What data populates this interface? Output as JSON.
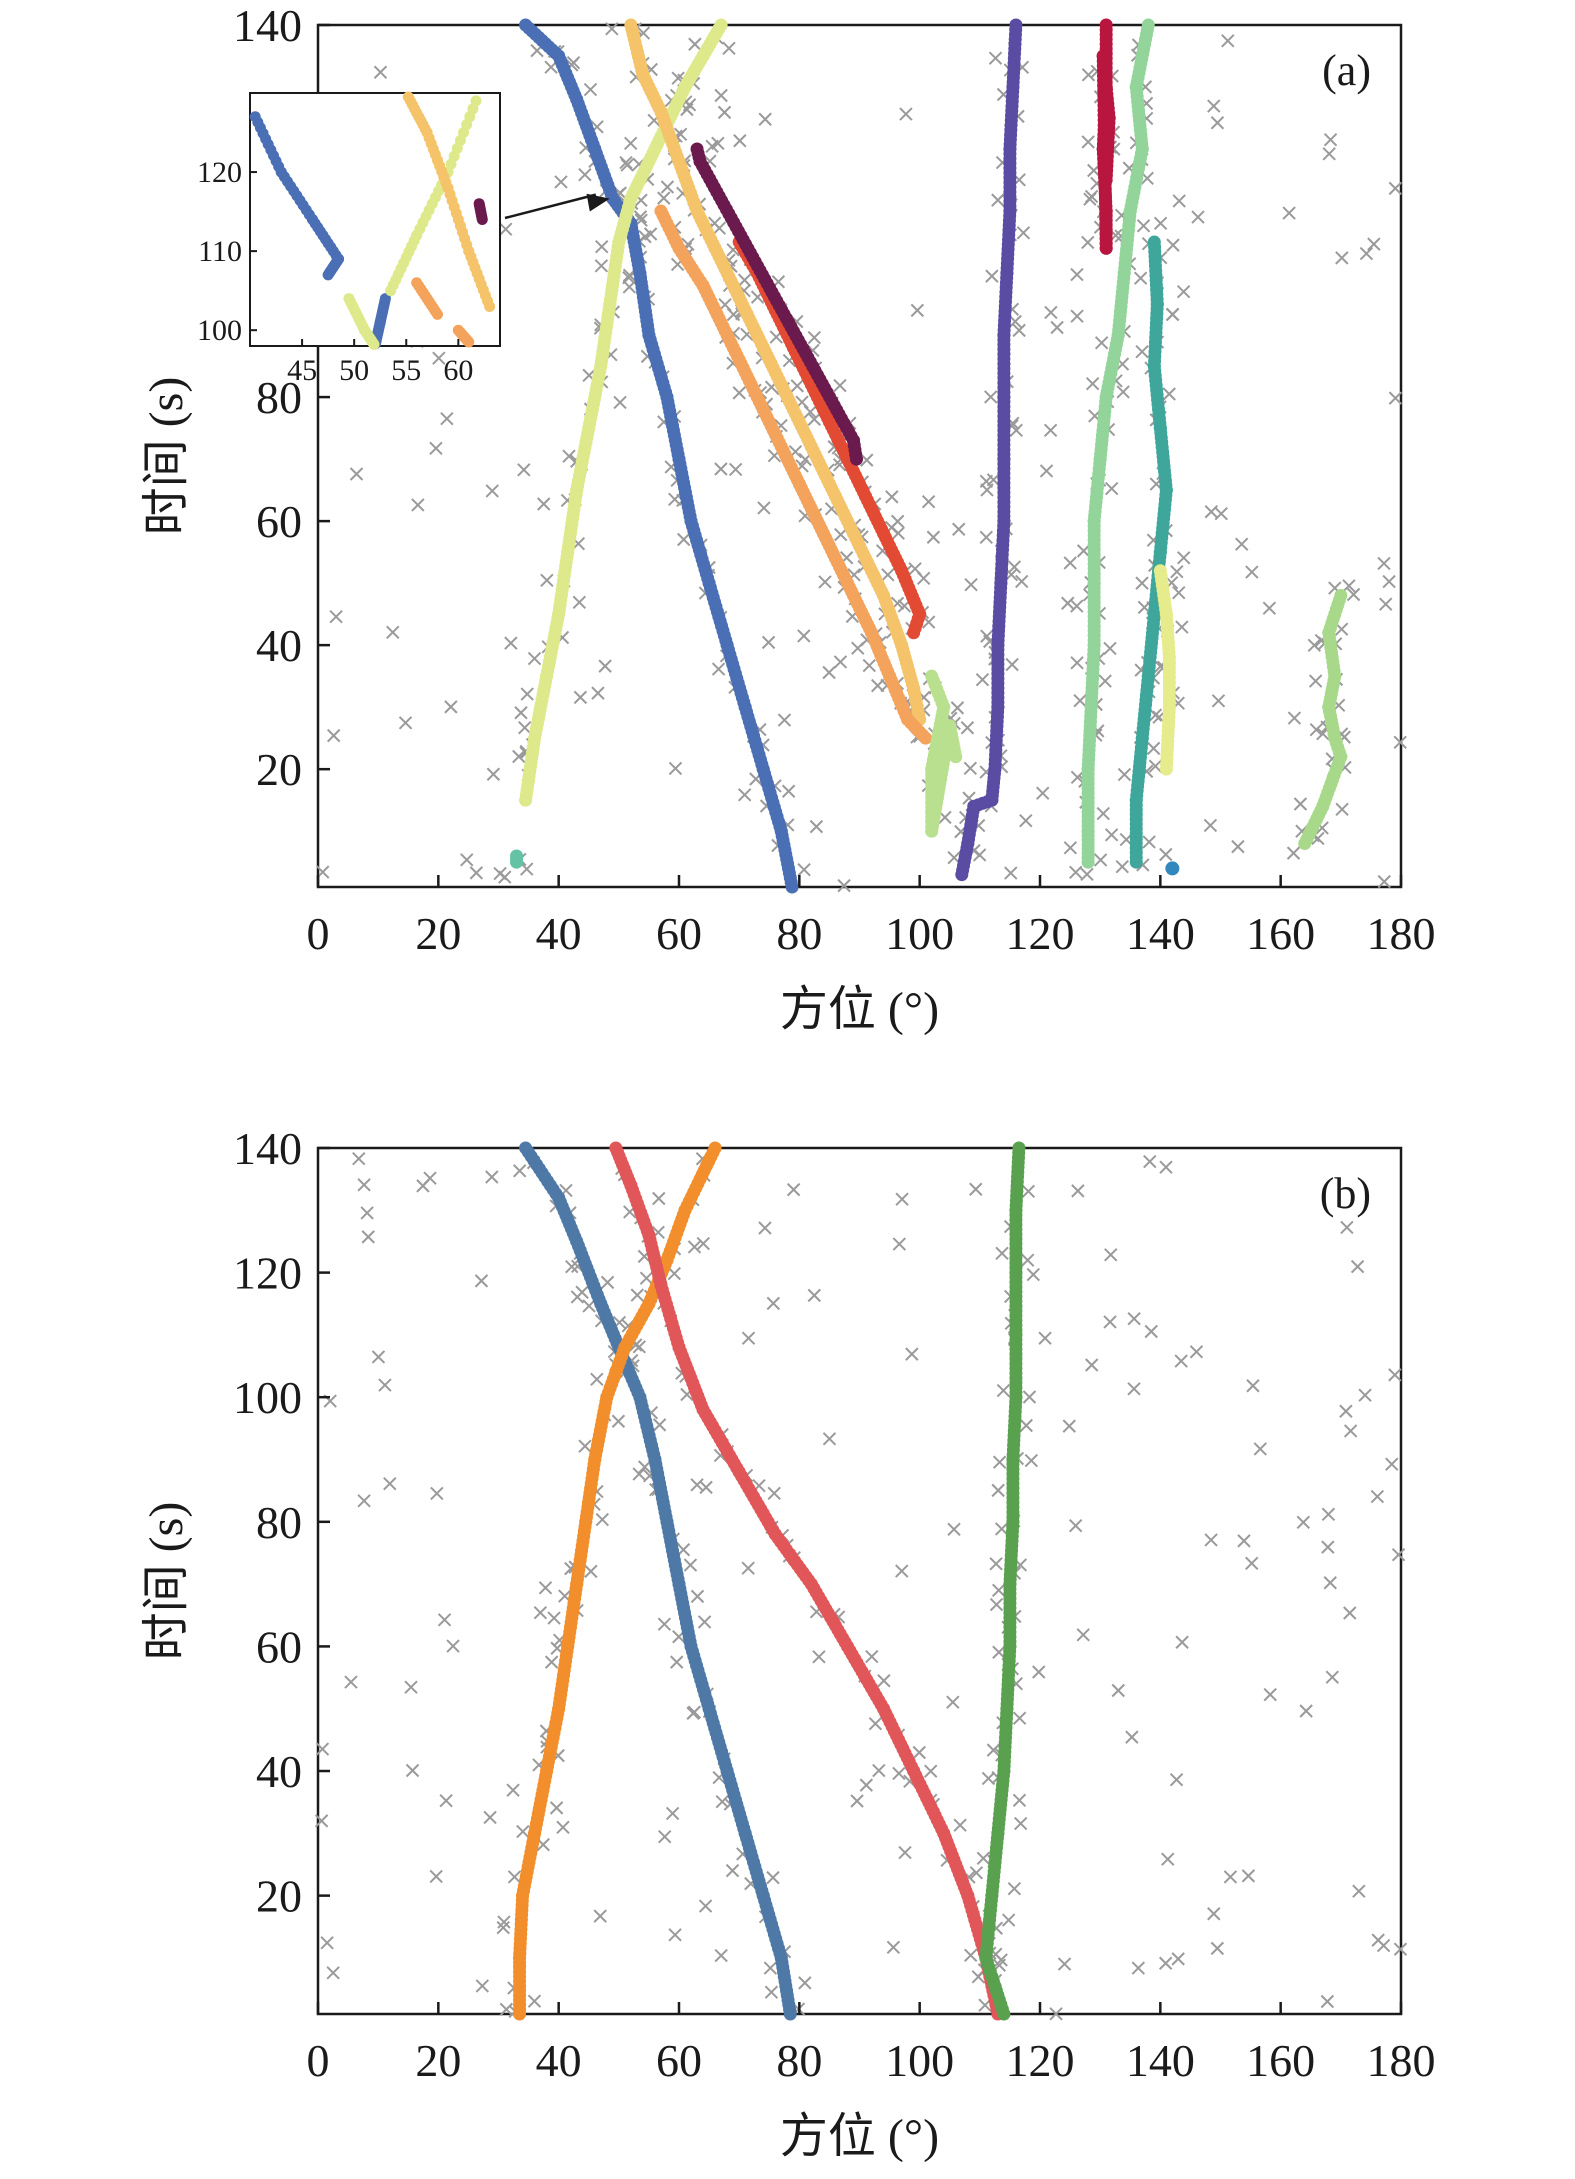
{
  "chart_data": [
    {
      "type": "scatter",
      "panel_label": "(a)",
      "xlabel": "方位 (°)",
      "ylabel": "时间 (s)",
      "xlim": [
        0,
        180
      ],
      "ylim": [
        1,
        140
      ],
      "xticks": [
        0,
        20,
        40,
        60,
        80,
        100,
        120,
        140,
        160,
        180
      ],
      "yticks": [
        20,
        40,
        60,
        80,
        140
      ],
      "grid": false,
      "series": [
        {
          "color": "#4a6fb5",
          "points": [
            [
              78.8,
              1
            ],
            [
              77,
              10
            ],
            [
              74,
              20
            ],
            [
              71,
              30
            ],
            [
              68,
              40
            ],
            [
              65,
              50
            ],
            [
              62,
              60
            ],
            [
              60,
              70
            ],
            [
              58,
              80
            ],
            [
              55,
              90
            ],
            [
              53.5,
              100
            ],
            [
              52,
              108
            ],
            [
              49,
              112
            ],
            [
              46,
              120
            ],
            [
              43,
              128
            ],
            [
              40,
              135
            ],
            [
              34.5,
              140
            ]
          ]
        },
        {
          "color": "#dde98a",
          "points": [
            [
              34.5,
              15
            ],
            [
              36,
              25
            ],
            [
              38,
              35
            ],
            [
              40,
              45
            ],
            [
              41.5,
              55
            ],
            [
              43,
              65
            ],
            [
              45,
              75
            ],
            [
              47,
              85
            ],
            [
              48.5,
              95
            ],
            [
              50,
              105
            ],
            [
              52,
              112
            ],
            [
              55,
              118
            ],
            [
              58,
              124
            ],
            [
              61,
              130
            ],
            [
              64,
              135
            ],
            [
              67,
              140
            ]
          ]
        },
        {
          "color": "#f4c36a",
          "points": [
            [
              52,
              140
            ],
            [
              54,
              132
            ],
            [
              57,
              126
            ],
            [
              60,
              118
            ],
            [
              63,
              110
            ],
            [
              66,
              104
            ],
            [
              70,
              96
            ],
            [
              74,
              88
            ],
            [
              78,
              80
            ],
            [
              82,
              72
            ],
            [
              86,
              64
            ],
            [
              90,
              56
            ],
            [
              94,
              48
            ],
            [
              97,
              40
            ],
            [
              99,
              33
            ],
            [
              100,
              28
            ]
          ]
        },
        {
          "color": "#f4a35c",
          "points": [
            [
              57,
              110
            ],
            [
              60,
              104
            ],
            [
              64,
              98
            ],
            [
              68,
              90
            ],
            [
              72,
              82
            ],
            [
              76,
              74
            ],
            [
              80,
              66
            ],
            [
              84,
              58
            ],
            [
              88,
              50
            ],
            [
              92,
              42
            ],
            [
              95,
              35
            ],
            [
              98,
              28
            ],
            [
              101,
              25
            ]
          ]
        },
        {
          "color": "#e34a33",
          "points": [
            [
              70,
              105
            ],
            [
              73,
              100
            ],
            [
              76,
              94
            ],
            [
              79,
              88
            ],
            [
              82,
              82
            ],
            [
              85,
              76
            ],
            [
              88,
              70
            ],
            [
              91,
              64
            ],
            [
              94,
              58
            ],
            [
              97,
              52
            ],
            [
              100,
              45
            ],
            [
              99,
              42
            ]
          ]
        },
        {
          "color": "#b8163f",
          "points": [
            [
              131,
              140
            ],
            [
              131,
              130
            ],
            [
              130.5,
              120
            ],
            [
              131,
              110
            ],
            [
              131,
              104
            ],
            [
              130.5,
              135
            ],
            [
              131.5,
              125
            ],
            [
              131,
              115
            ]
          ]
        },
        {
          "color": "#6a1a4c",
          "points": [
            [
              63,
              120
            ],
            [
              63.5,
              118
            ],
            [
              89,
              73
            ],
            [
              89.5,
              70
            ]
          ]
        },
        {
          "color": "#5a4ba3",
          "points": [
            [
              116,
              140
            ],
            [
              115.5,
              130
            ],
            [
              115,
              120
            ],
            [
              115,
              110
            ],
            [
              114.5,
              100
            ],
            [
              114,
              90
            ],
            [
              114,
              80
            ],
            [
              114,
              70
            ],
            [
              114,
              60
            ],
            [
              113.5,
              50
            ],
            [
              113,
              40
            ],
            [
              113,
              30
            ],
            [
              112.5,
              20
            ],
            [
              112,
              15
            ],
            [
              109,
              14
            ],
            [
              108,
              8
            ],
            [
              107,
              3
            ]
          ]
        },
        {
          "color": "#93d49a",
          "points": [
            [
              138,
              140
            ],
            [
              136,
              130
            ],
            [
              137,
              120
            ],
            [
              135,
              110
            ],
            [
              134,
              100
            ],
            [
              133,
              90
            ],
            [
              131,
              80
            ],
            [
              130,
              70
            ],
            [
              129,
              60
            ],
            [
              129,
              50
            ],
            [
              129,
              40
            ],
            [
              128.5,
              30
            ],
            [
              128,
              20
            ],
            [
              128,
              10
            ],
            [
              128,
              5
            ]
          ]
        },
        {
          "color": "#3ea69b",
          "points": [
            [
              139,
              105
            ],
            [
              139.5,
              95
            ],
            [
              139,
              85
            ],
            [
              140,
              75
            ],
            [
              141,
              65
            ],
            [
              140,
              55
            ],
            [
              139,
              45
            ],
            [
              138,
              35
            ],
            [
              137,
              25
            ],
            [
              136,
              15
            ],
            [
              136,
              5
            ]
          ]
        },
        {
          "color": "#b9e08f",
          "points": [
            [
              102,
              35
            ],
            [
              104,
              30
            ],
            [
              103,
              25
            ],
            [
              102,
              20
            ],
            [
              102,
              10
            ],
            [
              105,
              27
            ],
            [
              106,
              22
            ]
          ]
        },
        {
          "color": "#e6eb8c",
          "points": [
            [
              140,
              52
            ],
            [
              141,
              45
            ],
            [
              141.5,
              38
            ],
            [
              141.5,
              30
            ],
            [
              141,
              20
            ]
          ]
        },
        {
          "color": "#a8d98a",
          "points": [
            [
              170,
              48
            ],
            [
              168,
              42
            ],
            [
              169,
              35
            ],
            [
              168,
              30
            ],
            [
              169,
              25
            ],
            [
              170,
              22
            ],
            [
              167,
              14
            ],
            [
              165,
              10
            ],
            [
              164,
              8
            ]
          ]
        },
        {
          "color": "#66c2a5",
          "points": [
            [
              33,
              6
            ],
            [
              33,
              5
            ]
          ]
        },
        {
          "color": "#3288bd",
          "points": [
            [
              142,
              4
            ]
          ]
        }
      ],
      "inset": {
        "xticks": [
          45,
          50,
          55,
          60
        ],
        "yticks": [
          100,
          110,
          120
        ],
        "xlim": [
          40,
          64
        ],
        "ylim": [
          98,
          130
        ],
        "arrow": true
      }
    },
    {
      "type": "scatter",
      "panel_label": "(b)",
      "xlabel": "方位 (°)",
      "ylabel": "时间 (s)",
      "xlim": [
        0,
        180
      ],
      "ylim": [
        1,
        140
      ],
      "xticks": [
        0,
        20,
        40,
        60,
        80,
        100,
        120,
        140,
        160,
        180
      ],
      "yticks": [
        20,
        40,
        60,
        80,
        100,
        120,
        140
      ],
      "grid": false,
      "series": [
        {
          "color": "#4e79a7",
          "points": [
            [
              78.5,
              1
            ],
            [
              77,
              10
            ],
            [
              74,
              20
            ],
            [
              71,
              30
            ],
            [
              68,
              40
            ],
            [
              65,
              50
            ],
            [
              62,
              60
            ],
            [
              60,
              70
            ],
            [
              58,
              80
            ],
            [
              56,
              90
            ],
            [
              53.5,
              100
            ],
            [
              50,
              108
            ],
            [
              47,
              115
            ],
            [
              43,
              125
            ],
            [
              40,
              132
            ],
            [
              34.5,
              140
            ]
          ]
        },
        {
          "color": "#f28e2b",
          "points": [
            [
              33.5,
              1
            ],
            [
              33.5,
              10
            ],
            [
              34,
              20
            ],
            [
              36,
              30
            ],
            [
              38,
              40
            ],
            [
              40,
              50
            ],
            [
              41.5,
              60
            ],
            [
              43,
              70
            ],
            [
              44.5,
              80
            ],
            [
              46,
              90
            ],
            [
              48,
              100
            ],
            [
              51,
              108
            ],
            [
              55,
              115
            ],
            [
              58,
              122
            ],
            [
              61,
              130
            ],
            [
              66,
              140
            ]
          ]
        },
        {
          "color": "#e15759",
          "points": [
            [
              113,
              1
            ],
            [
              111,
              10
            ],
            [
              108,
              20
            ],
            [
              104,
              30
            ],
            [
              99,
              40
            ],
            [
              94,
              50
            ],
            [
              88,
              60
            ],
            [
              82,
              70
            ],
            [
              76,
              78
            ],
            [
              70,
              88
            ],
            [
              64,
              98
            ],
            [
              60,
              108
            ],
            [
              57,
              118
            ],
            [
              55,
              126
            ],
            [
              52,
              134
            ],
            [
              49.5,
              140
            ]
          ]
        },
        {
          "color": "#59a14f",
          "points": [
            [
              114,
              1
            ],
            [
              111,
              10
            ],
            [
              112,
              20
            ],
            [
              113,
              30
            ],
            [
              114,
              40
            ],
            [
              114.5,
              50
            ],
            [
              115,
              60
            ],
            [
              115,
              70
            ],
            [
              115.5,
              80
            ],
            [
              115.5,
              90
            ],
            [
              116,
              100
            ],
            [
              116,
              110
            ],
            [
              116,
              120
            ],
            [
              116,
              130
            ],
            [
              116.5,
              140
            ]
          ]
        }
      ]
    }
  ]
}
